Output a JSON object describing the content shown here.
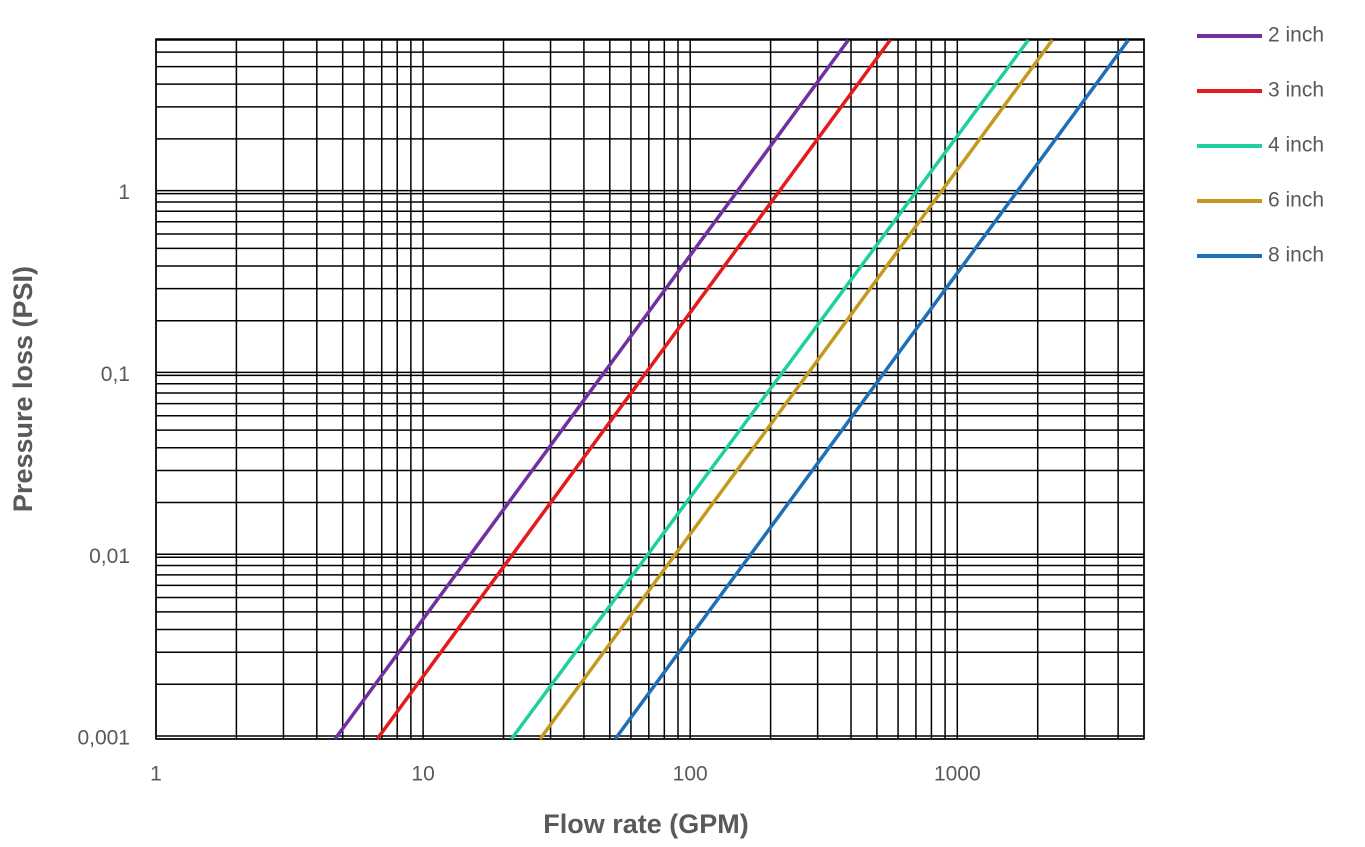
{
  "chart_data": {
    "type": "line",
    "x_label": "Flow rate (GPM)",
    "y_label": "Pressure loss (PSI)",
    "xscale": "log",
    "yscale": "log",
    "grid": true,
    "legend": "right",
    "xlim": [
      1,
      5000
    ],
    "ylim": [
      0.001,
      7
    ],
    "xticks": [
      1,
      10,
      100,
      1000
    ],
    "yticks": [
      {
        "value": 0.001,
        "label": "0,001"
      },
      {
        "value": 0.01,
        "label": "0,01"
      },
      {
        "value": 0.1,
        "label": "0,1"
      },
      1
    ],
    "xminor": [
      2,
      3,
      4,
      5,
      6,
      7,
      8,
      9,
      20,
      30,
      40,
      50,
      60,
      70,
      80,
      90,
      200,
      300,
      400,
      500,
      600,
      700,
      800,
      900,
      2000,
      3000,
      4000,
      5000
    ],
    "yminor": [
      0.002,
      0.003,
      0.004,
      0.005,
      0.006,
      0.007,
      0.008,
      0.009,
      0.02,
      0.03,
      0.04,
      0.05,
      0.06,
      0.07,
      0.08,
      0.09,
      0.2,
      0.3,
      0.4,
      0.5,
      0.6,
      0.7,
      0.8,
      0.9,
      2,
      3,
      4,
      5,
      6,
      7
    ],
    "series": [
      {
        "name": "2 inch",
        "color": "#7030a0",
        "x": [
          4.68,
          391
        ],
        "values": [
          0.001,
          7
        ]
      },
      {
        "name": "3 inch",
        "color": "#e41a1c",
        "x": [
          6.73,
          561
        ],
        "values": [
          0.001,
          7
        ]
      },
      {
        "name": "4 inch",
        "color": "#1fcf9f",
        "x": [
          21.4,
          1845
        ],
        "values": [
          0.001,
          7
        ]
      },
      {
        "name": "6 inch",
        "color": "#c49a1e",
        "x": [
          27.4,
          2270
        ],
        "values": [
          0.001,
          7
        ]
      },
      {
        "name": "8 inch",
        "color": "#1f6fb8",
        "x": [
          52.4,
          4370
        ],
        "values": [
          0.001,
          7
        ]
      }
    ]
  }
}
